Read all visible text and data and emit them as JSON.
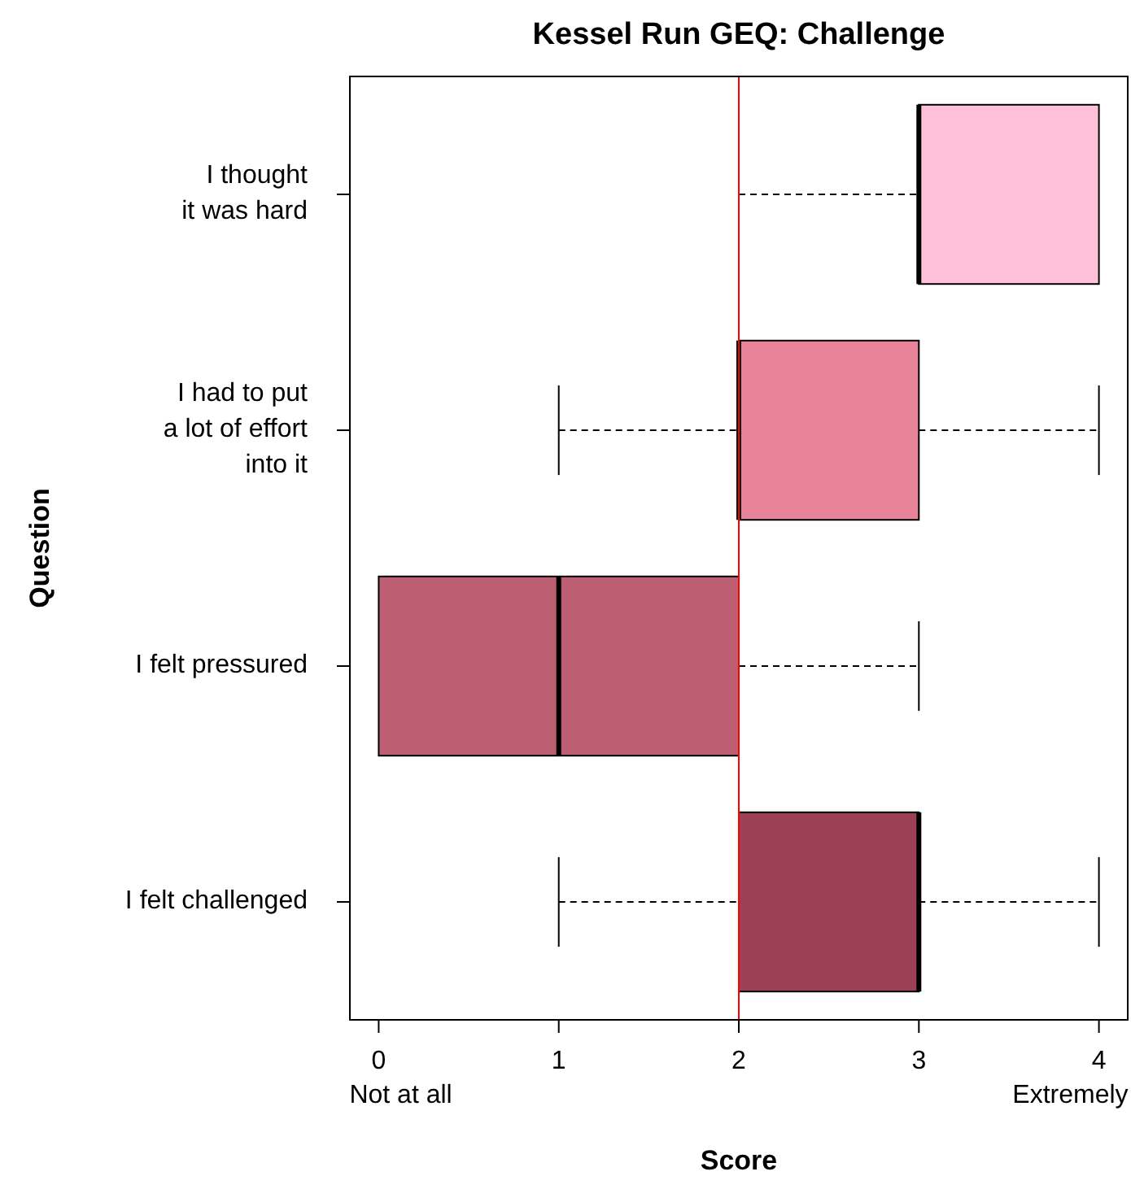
{
  "chart_data": {
    "type": "box",
    "orientation": "horizontal",
    "title": "Kessel Run GEQ: Challenge",
    "xlabel": "Score",
    "ylabel": "Question",
    "categories": [
      "I thought\nit was hard",
      "I had to put\na lot of effort\ninto it",
      "I felt pressured",
      "I felt challenged"
    ],
    "colors": [
      "#ffc0d9",
      "#e88499",
      "#bd5f72",
      "#9b4055"
    ],
    "boxes": [
      {
        "low": 2,
        "q1": 3,
        "median": 3,
        "q3": 4,
        "high": 4
      },
      {
        "low": 1,
        "q1": 2,
        "median": 2,
        "q3": 3,
        "high": 4
      },
      {
        "low": 0,
        "q1": 0,
        "median": 1,
        "q3": 2,
        "high": 3
      },
      {
        "low": 1,
        "q1": 2,
        "median": 3,
        "q3": 3,
        "high": 4
      }
    ],
    "xlim": [
      -0.16,
      4.16
    ],
    "xticks": [
      {
        "value": 0,
        "label": "0\nNot at all"
      },
      1,
      2,
      3,
      {
        "value": 4,
        "label": "4\nExtremely"
      }
    ],
    "ref_lines": [
      {
        "axis": "x",
        "value": 2,
        "color": "#ff0000"
      }
    ],
    "grid": false
  }
}
